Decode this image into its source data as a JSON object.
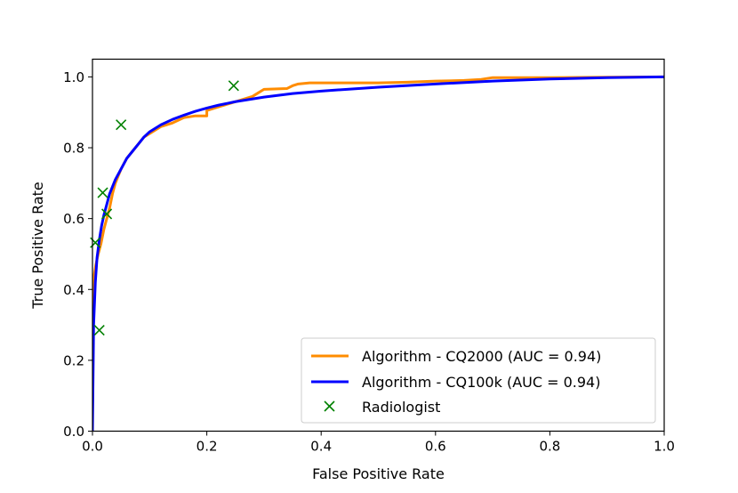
{
  "chart_data": {
    "type": "line",
    "title": "",
    "xlabel": "False Positive Rate",
    "ylabel": "True Positive Rate",
    "xlim": [
      0.0,
      1.0
    ],
    "ylim": [
      0.0,
      1.05
    ],
    "xticks": [
      "0.0",
      "0.2",
      "0.4",
      "0.6",
      "0.8",
      "1.0"
    ],
    "yticks": [
      "0.0",
      "0.2",
      "0.4",
      "0.6",
      "0.8",
      "1.0"
    ],
    "grid": false,
    "legend_position": "lower-right",
    "series": [
      {
        "name": "Algorithm - CQ2000 (AUC = 0.94)",
        "color": "#ff8c00",
        "kind": "line",
        "x": [
          0.0,
          0.0,
          0.003,
          0.006,
          0.01,
          0.015,
          0.02,
          0.025,
          0.03,
          0.035,
          0.04,
          0.045,
          0.05,
          0.06,
          0.07,
          0.08,
          0.09,
          0.1,
          0.12,
          0.14,
          0.16,
          0.18,
          0.2,
          0.2,
          0.22,
          0.24,
          0.26,
          0.28,
          0.29,
          0.3,
          0.34,
          0.35,
          0.36,
          0.38,
          0.4,
          0.45,
          0.5,
          0.55,
          0.6,
          0.65,
          0.68,
          0.7,
          0.75,
          0.8,
          0.9,
          1.0
        ],
        "y": [
          0.0,
          0.38,
          0.44,
          0.47,
          0.5,
          0.53,
          0.57,
          0.6,
          0.63,
          0.67,
          0.7,
          0.72,
          0.74,
          0.77,
          0.79,
          0.81,
          0.83,
          0.84,
          0.86,
          0.87,
          0.885,
          0.89,
          0.89,
          0.905,
          0.915,
          0.925,
          0.935,
          0.945,
          0.955,
          0.965,
          0.967,
          0.975,
          0.98,
          0.983,
          0.983,
          0.983,
          0.983,
          0.985,
          0.988,
          0.99,
          0.993,
          0.998,
          0.998,
          0.998,
          0.999,
          1.0
        ]
      },
      {
        "name": "Algorithm - CQ100k (AUC = 0.94)",
        "color": "#0000ff",
        "kind": "line",
        "x": [
          0.0,
          0.002,
          0.005,
          0.008,
          0.012,
          0.016,
          0.02,
          0.025,
          0.03,
          0.035,
          0.04,
          0.05,
          0.06,
          0.07,
          0.08,
          0.09,
          0.1,
          0.12,
          0.14,
          0.16,
          0.18,
          0.2,
          0.22,
          0.25,
          0.3,
          0.35,
          0.4,
          0.5,
          0.6,
          0.7,
          0.8,
          0.9,
          1.0
        ],
        "y": [
          0.0,
          0.3,
          0.42,
          0.49,
          0.54,
          0.58,
          0.61,
          0.64,
          0.67,
          0.69,
          0.71,
          0.74,
          0.77,
          0.79,
          0.81,
          0.83,
          0.845,
          0.865,
          0.88,
          0.892,
          0.903,
          0.912,
          0.92,
          0.93,
          0.943,
          0.953,
          0.96,
          0.971,
          0.98,
          0.988,
          0.994,
          0.998,
          1.0
        ]
      },
      {
        "name": "Radiologist",
        "color": "#008000",
        "kind": "scatter",
        "marker": "x",
        "x": [
          0.005,
          0.012,
          0.018,
          0.025,
          0.05,
          0.247
        ],
        "y": [
          0.532,
          0.285,
          0.673,
          0.613,
          0.865,
          0.975
        ]
      }
    ]
  }
}
